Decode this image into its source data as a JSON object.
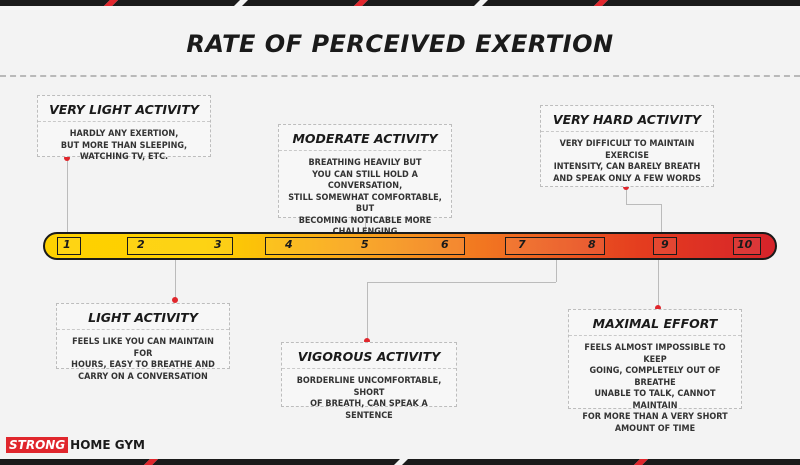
{
  "title": "RATE OF PERCEIVED EXERTION",
  "levels": [
    {
      "title": "VERY LIGHT ACTIVITY",
      "text": "HARDLY ANY EXERTION,\nBUT MORE THAN SLEEPING,\nWATCHING TV, ETC."
    },
    {
      "title": "LIGHT ACTIVITY",
      "text": "FEELS LIKE YOU CAN MAINTAIN FOR\nHOURS, EASY TO BREATHE AND\nCARRY ON A CONVERSATION"
    },
    {
      "title": "MODERATE ACTIVITY",
      "text": "BREATHING HEAVILY BUT\nYOU CAN STILL HOLD A CONVERSATION,\nSTILL SOMEWHAT COMFORTABLE, BUT\nBECOMING NOTICABLE MORE\nCHALLENGING"
    },
    {
      "title": "VIGOROUS ACTIVITY",
      "text": "BORDERLINE UNCOMFORTABLE, SHORT\nOF BREATH, CAN SPEAK A SENTENCE"
    },
    {
      "title": "VERY HARD ACTIVITY",
      "text": "VERY DIFFICULT TO MAINTAIN EXERCISE\nINTENSITY, CAN BARELY BREATH\nAND SPEAK ONLY A FEW  WORDS"
    },
    {
      "title": "MAXIMAL EFFORT",
      "text": "FEELS ALMOST IMPOSSIBLE TO KEEP\nGOING, COMPLETELY OUT OF BREATHE\nUNABLE TO TALK, CANNOT MAINTAIN\nFOR MORE THAN A VERY SHORT\nAMOUNT OF TIME"
    }
  ],
  "scale_numbers": [
    "1",
    "2",
    "3",
    "4",
    "5",
    "6",
    "7",
    "8",
    "9",
    "10"
  ],
  "logo": {
    "strong": "STRONG",
    "rest": "HOME GYM"
  },
  "colors": {
    "low": "#fed100",
    "mid": "#f9a51a",
    "high": "#d6232a",
    "accent": "#e0262c"
  }
}
